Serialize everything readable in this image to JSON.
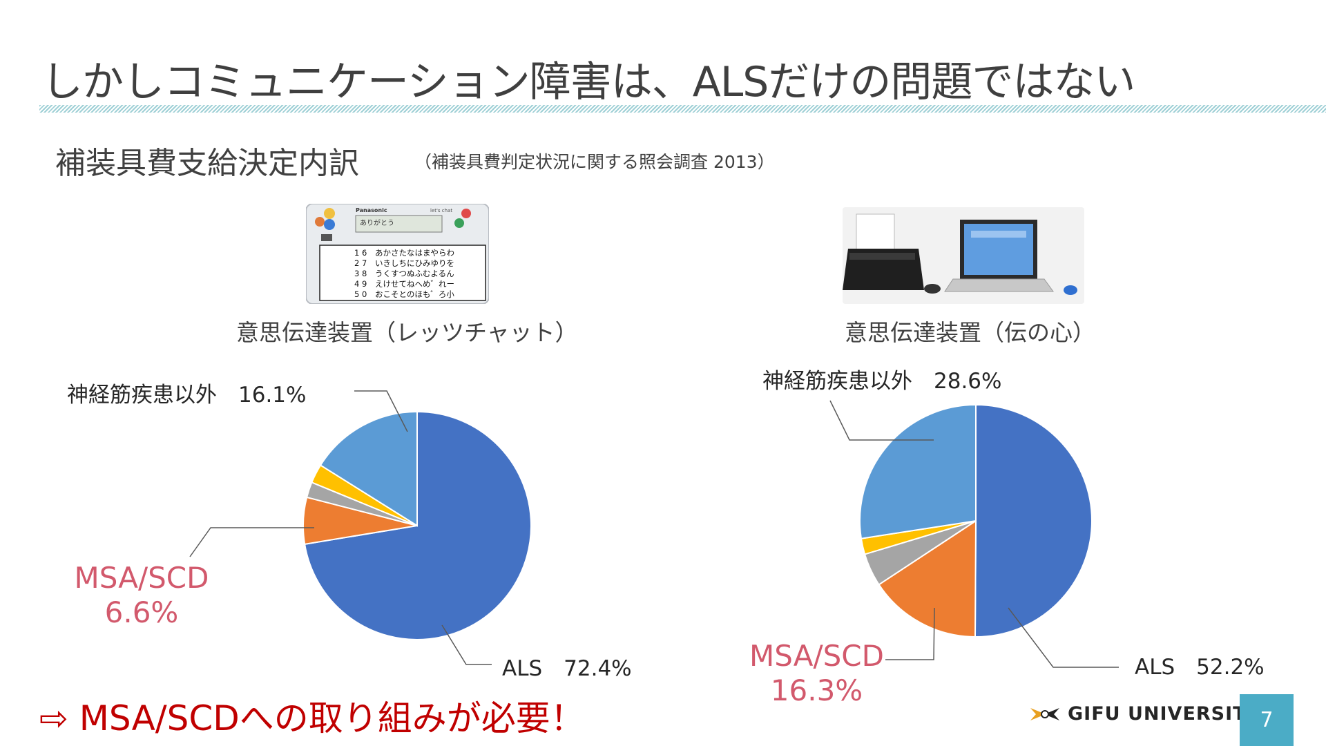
{
  "slide": {
    "title": "しかしコミュニケーション障害は、ALSだけの問題ではない",
    "subtitle": "補装具費支給決定内訳",
    "source": "（補装具費判定状況に関する照会調査 2013）",
    "conclusion": "⇨ MSA/SCDへの取り組みが必要！",
    "university": "GIFU UNIVERSITY",
    "page_number": "7"
  },
  "devices": {
    "left": {
      "caption": "意思伝達装置（レッツチャット）",
      "screen_text": "ありがとう",
      "brand_text": "Panasonic",
      "model_text": "let's chat",
      "key_rows": [
        "あかさたなはまやらわ",
        "いきしちにひみゆりを",
        "うくすつぬふむよるん",
        "えけせてねへめ゛れー",
        "おこそとのほも゜ろ小"
      ],
      "digit_keys": [
        "1 6",
        "2 7",
        "3 8",
        "4 9",
        "5 0"
      ]
    },
    "right": {
      "caption": "意思伝達装置（伝の心）"
    }
  },
  "colors": {
    "als": "#4472c4",
    "msa_scd": "#ed7d31",
    "other_gray": "#a5a5a5",
    "other_yellow": "#ffc000",
    "non_neuromuscular": "#5b9bd5",
    "accent_red": "#c00000",
    "label_red": "#d2596c",
    "page_box": "#4bacc6"
  },
  "chart_data": [
    {
      "type": "pie",
      "slices": [
        {
          "name": "ALS",
          "value": 72.4,
          "color": "#4472c4"
        },
        {
          "name": "MSA/SCD",
          "value": 6.6,
          "color": "#ed7d31"
        },
        {
          "name": "",
          "value": 2.2,
          "color": "#a5a5a5"
        },
        {
          "name": "",
          "value": 2.7,
          "color": "#ffc000"
        },
        {
          "name": "神経筋疾患以外",
          "value": 16.1,
          "color": "#5b9bd5"
        }
      ],
      "labels": {
        "als": "ALS　72.4%",
        "msa_line1": "MSA/SCD",
        "msa_line2": "6.6%",
        "other": "神経筋疾患以外　16.1%"
      }
    },
    {
      "type": "pie",
      "slices": [
        {
          "name": "ALS",
          "value": 52.2,
          "color": "#4472c4"
        },
        {
          "name": "MSA/SCD",
          "value": 16.3,
          "color": "#ed7d31"
        },
        {
          "name": "",
          "value": 4.8,
          "color": "#a5a5a5"
        },
        {
          "name": "",
          "value": 2.3,
          "color": "#ffc000"
        },
        {
          "name": "神経筋疾患以外",
          "value": 28.6,
          "color": "#5b9bd5"
        }
      ],
      "labels": {
        "als": "ALS　52.2%",
        "msa_line1": "MSA/SCD",
        "msa_line2": "16.3%",
        "other": "神経筋疾患以外　28.6%"
      }
    }
  ]
}
